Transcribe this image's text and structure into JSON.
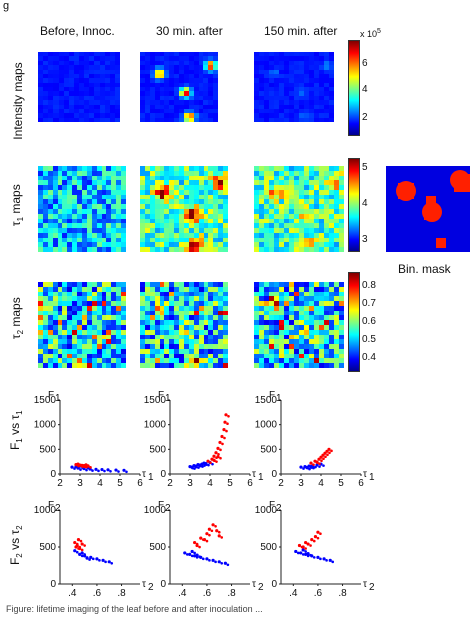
{
  "figure_label": "g",
  "columns": [
    "Before, Innoc.",
    "30 min. after",
    "150 min. after"
  ],
  "rows": {
    "intensity": "Intensity maps",
    "tau1_main": "τ",
    "tau1_sub": "1",
    "tau1_rest": " maps",
    "tau2_main": "τ",
    "tau2_sub": "2",
    "tau2_rest": " maps",
    "f1_main": "F",
    "f1_sub": "1",
    "f1_vs": " vs ",
    "f1_tau": "τ",
    "f1_tau_sub": "1",
    "f2_main": "F",
    "f2_sub": "2",
    "f2_vs": " vs ",
    "f2_tau": "τ",
    "f2_tau_sub": "2"
  },
  "mask_label": "Bin. mask",
  "colorbars": [
    {
      "exponent": "x 10",
      "exponent_power": "5",
      "ticks": [
        "6",
        "4",
        "2"
      ]
    },
    {
      "ticks": [
        "5",
        "4",
        "3"
      ]
    },
    {
      "ticks": [
        "0.8",
        "0.7",
        "0.6",
        "0.5",
        "0.4"
      ]
    }
  ],
  "caption": "Figure: lifetime imaging of the leaf before and after inoculation ...",
  "chart_data": [
    {
      "type": "scatter",
      "panel": "F1 vs tau1, Before Innoc.",
      "ylabel_main": "F",
      "ylabel_sub": "1",
      "xlabel_main": "τ",
      "xlabel_sub": "1",
      "xticks": [
        "2",
        "3",
        "4",
        "5",
        "6"
      ],
      "yticks": [
        "0",
        "500",
        "1000",
        "1500"
      ],
      "xlim": [
        2,
        6
      ],
      "ylim": [
        0,
        1500
      ],
      "series": [
        {
          "color": "#0000ff",
          "points": [
            [
              2.6,
              140
            ],
            [
              2.9,
              120
            ],
            [
              3.2,
              110
            ],
            [
              3.5,
              100
            ],
            [
              3.8,
              95
            ],
            [
              4.1,
              90
            ],
            [
              4.4,
              85
            ],
            [
              4.8,
              80
            ],
            [
              5.2,
              75
            ],
            [
              3.0,
              160
            ],
            [
              3.4,
              130
            ],
            [
              2.8,
              150
            ]
          ]
        },
        {
          "color": "#ff0000",
          "points": [
            [
              2.8,
              190
            ],
            [
              3.0,
              180
            ],
            [
              3.2,
              170
            ],
            [
              3.4,
              165
            ],
            [
              2.9,
              200
            ],
            [
              3.1,
              175
            ],
            [
              3.3,
              185
            ]
          ]
        }
      ]
    },
    {
      "type": "scatter",
      "panel": "F1 vs tau1, 30 min. after",
      "ylabel_main": "F",
      "ylabel_sub": "1",
      "xlabel_main": "τ",
      "xlabel_sub": "1",
      "xticks": [
        "2",
        "3",
        "4",
        "5",
        "6"
      ],
      "yticks": [
        "0",
        "500",
        "1000",
        "1500"
      ],
      "xlim": [
        2,
        6
      ],
      "ylim": [
        0,
        1500
      ],
      "series": [
        {
          "color": "#0000ff",
          "points": [
            [
              3.0,
              150
            ],
            [
              3.2,
              170
            ],
            [
              3.4,
              190
            ],
            [
              3.6,
              200
            ],
            [
              3.8,
              210
            ],
            [
              3.3,
              160
            ],
            [
              3.5,
              180
            ],
            [
              3.1,
              140
            ],
            [
              3.7,
              220
            ],
            [
              4.0,
              230
            ]
          ]
        },
        {
          "color": "#ff0000",
          "points": [
            [
              3.9,
              260
            ],
            [
              4.1,
              300
            ],
            [
              4.2,
              360
            ],
            [
              4.3,
              430
            ],
            [
              4.4,
              520
            ],
            [
              4.5,
              640
            ],
            [
              4.6,
              760
            ],
            [
              4.7,
              900
            ],
            [
              4.75,
              1050
            ],
            [
              4.8,
              1200
            ],
            [
              4.2,
              280
            ],
            [
              4.4,
              350
            ]
          ]
        }
      ]
    },
    {
      "type": "scatter",
      "panel": "F1 vs tau1, 150 min. after",
      "ylabel_main": "F",
      "ylabel_sub": "1",
      "xlabel_main": "τ",
      "xlabel_sub": "1",
      "xticks": [
        "2",
        "3",
        "4",
        "5",
        "6"
      ],
      "yticks": [
        "0",
        "500",
        "1000",
        "1500"
      ],
      "xlim": [
        2,
        6
      ],
      "ylim": [
        0,
        1500
      ],
      "series": [
        {
          "color": "#0000ff",
          "points": [
            [
              3.0,
              140
            ],
            [
              3.2,
              150
            ],
            [
              3.4,
              160
            ],
            [
              3.6,
              170
            ],
            [
              3.8,
              180
            ],
            [
              3.3,
              130
            ],
            [
              3.5,
              150
            ],
            [
              4.0,
              200
            ]
          ]
        },
        {
          "color": "#ff0000",
          "points": [
            [
              3.5,
              220
            ],
            [
              3.7,
              260
            ],
            [
              3.9,
              300
            ],
            [
              4.0,
              340
            ],
            [
              4.1,
              380
            ],
            [
              4.2,
              420
            ],
            [
              4.3,
              460
            ],
            [
              3.8,
              240
            ],
            [
              4.4,
              500
            ]
          ]
        }
      ]
    },
    {
      "type": "scatter",
      "panel": "F2 vs tau2, Before Innoc.",
      "ylabel_main": "F",
      "ylabel_sub": "2",
      "xlabel_main": "τ",
      "xlabel_sub": "2",
      "xticks": [
        ".4",
        ".6",
        ".8"
      ],
      "yticks": [
        "0",
        "500",
        "1000"
      ],
      "xlim": [
        0.3,
        0.95
      ],
      "ylim": [
        0,
        1000
      ],
      "series": [
        {
          "color": "#0000ff",
          "points": [
            [
              0.42,
              450
            ],
            [
              0.46,
              400
            ],
            [
              0.5,
              380
            ],
            [
              0.55,
              360
            ],
            [
              0.6,
              340
            ],
            [
              0.65,
              320
            ],
            [
              0.7,
              300
            ],
            [
              0.48,
              420
            ],
            [
              0.52,
              350
            ]
          ]
        },
        {
          "color": "#ff0000",
          "points": [
            [
              0.42,
              560
            ],
            [
              0.44,
              520
            ],
            [
              0.46,
              480
            ],
            [
              0.48,
              540
            ],
            [
              0.45,
              600
            ],
            [
              0.43,
              500
            ]
          ]
        }
      ]
    },
    {
      "type": "scatter",
      "panel": "F2 vs tau2, 30 min. after",
      "ylabel_main": "F",
      "ylabel_sub": "2",
      "xlabel_main": "τ",
      "xlabel_sub": "2",
      "xticks": [
        ".4",
        ".6",
        ".8"
      ],
      "yticks": [
        "0",
        "500",
        "1000"
      ],
      "xlim": [
        0.3,
        0.95
      ],
      "ylim": [
        0,
        1000
      ],
      "series": [
        {
          "color": "#0000ff",
          "points": [
            [
              0.42,
              420
            ],
            [
              0.46,
              400
            ],
            [
              0.5,
              380
            ],
            [
              0.55,
              360
            ],
            [
              0.6,
              340
            ],
            [
              0.65,
              320
            ],
            [
              0.7,
              300
            ],
            [
              0.75,
              280
            ],
            [
              0.48,
              440
            ],
            [
              0.52,
              390
            ]
          ]
        },
        {
          "color": "#ff0000",
          "points": [
            [
              0.5,
              560
            ],
            [
              0.55,
              620
            ],
            [
              0.6,
              680
            ],
            [
              0.62,
              740
            ],
            [
              0.65,
              800
            ],
            [
              0.58,
              600
            ],
            [
              0.52,
              520
            ],
            [
              0.68,
              720
            ],
            [
              0.7,
              650
            ]
          ]
        }
      ]
    },
    {
      "type": "scatter",
      "panel": "F2 vs tau2, 150 min. after",
      "ylabel_main": "F",
      "ylabel_sub": "2",
      "xlabel_main": "τ",
      "xlabel_sub": "2",
      "xticks": [
        ".4",
        ".6",
        ".8"
      ],
      "yticks": [
        "0",
        "500",
        "1000"
      ],
      "xlim": [
        0.3,
        0.95
      ],
      "ylim": [
        0,
        1000
      ],
      "series": [
        {
          "color": "#0000ff",
          "points": [
            [
              0.42,
              440
            ],
            [
              0.46,
              420
            ],
            [
              0.5,
              400
            ],
            [
              0.55,
              380
            ],
            [
              0.6,
              360
            ],
            [
              0.65,
              340
            ],
            [
              0.7,
              320
            ],
            [
              0.48,
              460
            ],
            [
              0.52,
              410
            ]
          ]
        },
        {
          "color": "#ff0000",
          "points": [
            [
              0.45,
              520
            ],
            [
              0.5,
              560
            ],
            [
              0.55,
              600
            ],
            [
              0.58,
              640
            ],
            [
              0.6,
              700
            ],
            [
              0.52,
              540
            ],
            [
              0.48,
              500
            ]
          ]
        }
      ]
    }
  ]
}
